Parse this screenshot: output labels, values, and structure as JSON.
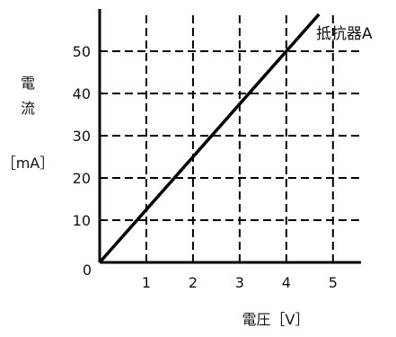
{
  "chart_data": {
    "type": "line",
    "xlabel": "電圧［V］",
    "ylabel_lines": [
      "電",
      "流",
      "［mA］"
    ],
    "origin_label": "0",
    "xlim": [
      0,
      5.6
    ],
    "ylim": [
      0,
      60
    ],
    "x_ticks": [
      1,
      2,
      3,
      4,
      5
    ],
    "y_ticks": [
      10,
      20,
      30,
      40,
      50
    ],
    "x_tick_labels": [
      "1",
      "2",
      "3",
      "4",
      "5"
    ],
    "y_tick_labels": [
      "10",
      "20",
      "30",
      "40",
      "50"
    ],
    "grid": true,
    "grid_style": "dashed",
    "series": [
      {
        "name": "抵抗器A",
        "x": [
          0,
          4.7
        ],
        "y": [
          0,
          58.75
        ],
        "color": "#000000"
      }
    ]
  }
}
